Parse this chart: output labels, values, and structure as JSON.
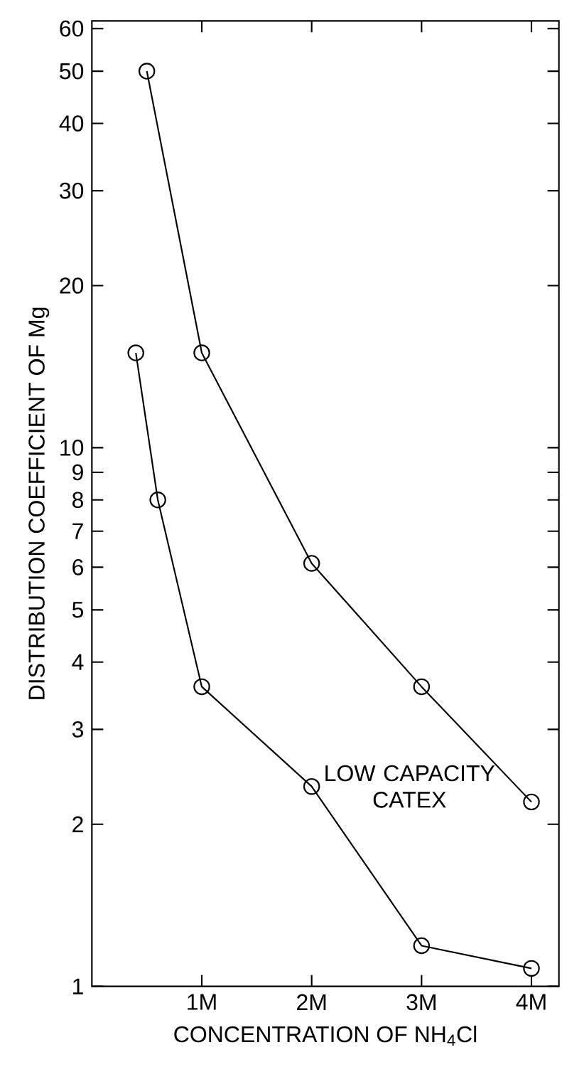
{
  "chart_data": {
    "type": "line",
    "xlabel": "CONCENTRATION OF NH$_{4}$Cl",
    "ylabel": "DISTRIBUTION COEFFICIENT OF Mg",
    "log": "y",
    "marker": "circle",
    "line_style": "solid",
    "xlim": [
      0,
      4.25
    ],
    "ylim": [
      1,
      62
    ],
    "xticks": [
      {
        "value": 1,
        "label": "1M"
      },
      {
        "value": 2,
        "label": "2M"
      },
      {
        "value": 3,
        "label": "3M"
      },
      {
        "value": 4,
        "label": "4M"
      }
    ],
    "yticks": [
      1,
      2,
      3,
      4,
      5,
      6,
      7,
      8,
      9,
      10,
      20,
      30,
      40,
      50,
      60
    ],
    "series": [
      {
        "color": "#000000",
        "x": [
          0.5,
          1,
          2,
          3,
          4
        ],
        "values": [
          50,
          15,
          6.1,
          3.6,
          2.2
        ]
      },
      {
        "name": "LOW CAPACITY CATEX",
        "color": "#000000",
        "x": [
          0.4,
          0.6,
          1,
          2,
          3,
          4
        ],
        "values": [
          15,
          8,
          3.6,
          2.35,
          1.19,
          1.08
        ]
      }
    ]
  }
}
